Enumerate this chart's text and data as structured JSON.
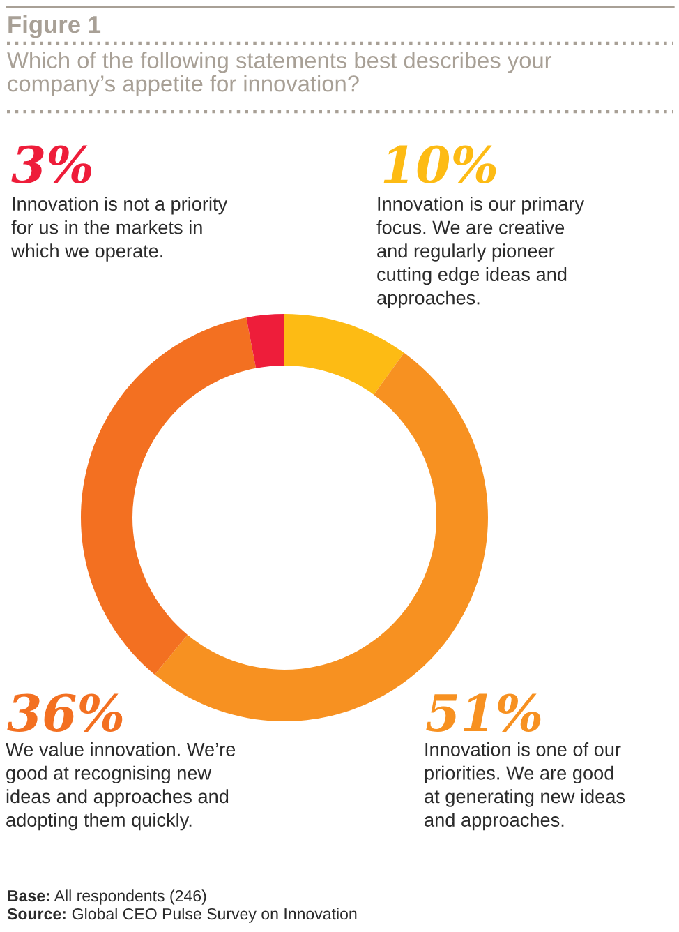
{
  "chart_data": {
    "type": "donut",
    "title": "Figure 1",
    "subtitle": "Which of the following statements best describes your\ncompany’s appetite for innovation?",
    "categories": [
      "Innovation is our primary\nfocus. We are creative\nand regularly pioneer\ncutting edge ideas and\napproaches.",
      "Innovation is one of our\npriorities. We are good\nat generating new ideas\nand approaches.",
      "We value innovation. We’re\ngood at recognising new\nideas and approaches and\nadopting them quickly.",
      "Innovation is not a priority\nfor us in the markets in\nwhich we operate."
    ],
    "values": [
      10,
      51,
      36,
      3
    ],
    "colors": [
      "#fdbb14",
      "#f79121",
      "#f37021",
      "#ee1d3a"
    ],
    "value_labels": [
      "10%",
      "51%",
      "36%",
      "3%"
    ],
    "annotations": [
      "Base: All respondents (246)",
      "Source: Global CEO Pulse Survey on Innovation"
    ]
  }
}
